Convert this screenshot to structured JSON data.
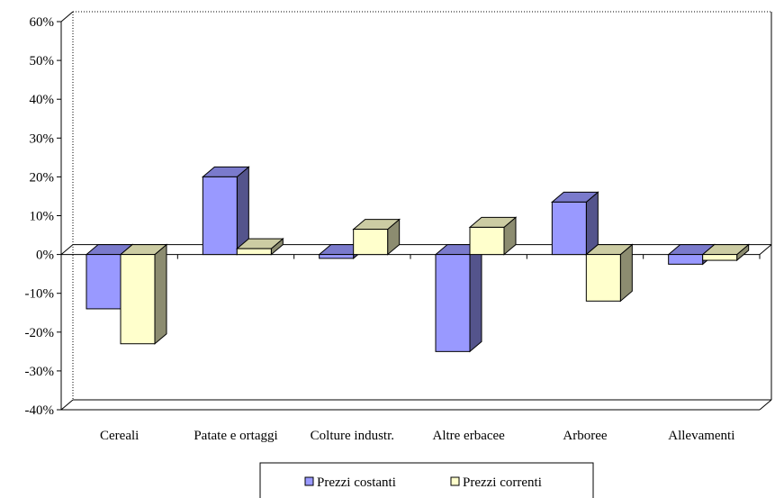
{
  "chart_data": {
    "type": "bar",
    "style": "3d-clustered-column",
    "categories": [
      "Cereali",
      "Patate e ortaggi",
      "Colture industr.",
      "Altre erbacee",
      "Arboree",
      "Allevamenti"
    ],
    "series": [
      {
        "name": "Prezzi costanti",
        "values": [
          -14,
          20,
          -1,
          -25,
          13.5,
          -2.5
        ],
        "color": "#9999FF"
      },
      {
        "name": "Prezzi correnti",
        "values": [
          -23,
          1.5,
          6.5,
          7,
          -12,
          -1.5
        ],
        "color": "#FFFFCC"
      }
    ],
    "y_ticks": [
      "60%",
      "50%",
      "40%",
      "30%",
      "20%",
      "10%",
      "0%",
      "-10%",
      "-20%",
      "-30%",
      "-40%"
    ],
    "ylim": [
      -40,
      60
    ],
    "y_unit": "%",
    "grid": false,
    "legend_position": "bottom"
  }
}
